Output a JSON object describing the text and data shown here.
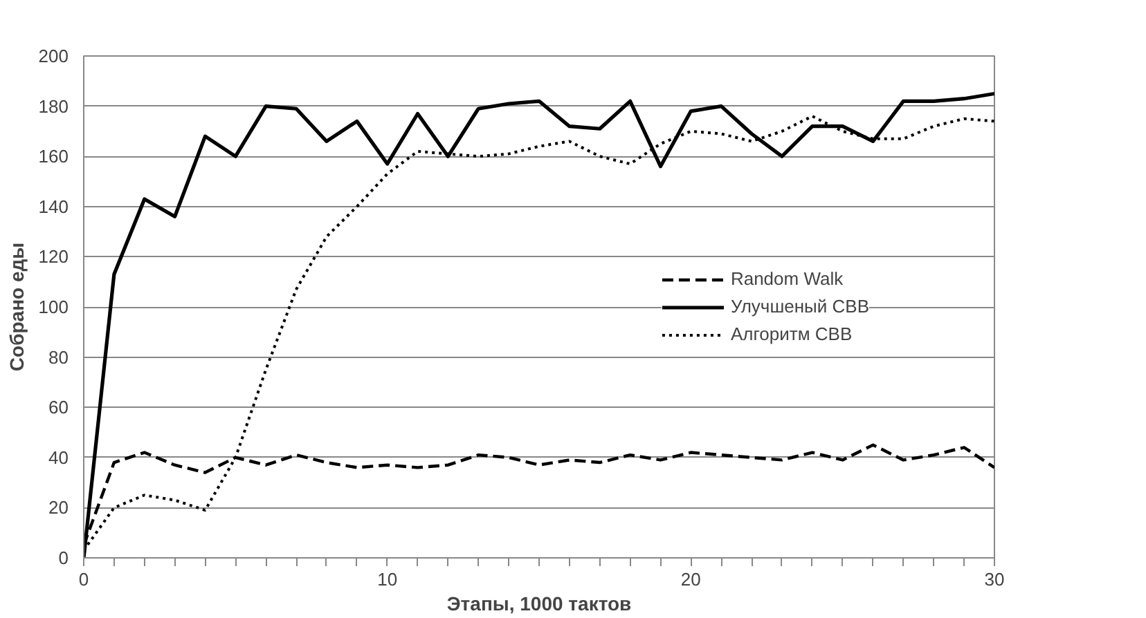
{
  "chart_data": {
    "type": "line",
    "xlabel": "Этапы, 1000 тактов",
    "ylabel": "Собрано еды",
    "x": [
      0,
      1,
      2,
      3,
      4,
      5,
      6,
      7,
      8,
      9,
      10,
      11,
      12,
      13,
      14,
      15,
      16,
      17,
      18,
      19,
      20,
      21,
      22,
      23,
      24,
      25,
      26,
      27,
      28,
      29,
      30
    ],
    "series": [
      {
        "name": "Random Walk",
        "color": "#000000",
        "line_style": "dashed",
        "values": [
          5,
          38,
          42,
          37,
          34,
          40,
          37,
          41,
          38,
          36,
          37,
          36,
          37,
          41,
          40,
          37,
          39,
          38,
          41,
          39,
          42,
          41,
          40,
          39,
          42,
          39,
          45,
          39,
          41,
          44,
          36
        ]
      },
      {
        "name": "Улучшеный СВВ",
        "color": "#000000",
        "line_style": "solid",
        "values": [
          0,
          113,
          143,
          136,
          168,
          160,
          180,
          179,
          166,
          174,
          157,
          177,
          160,
          179,
          181,
          182,
          172,
          171,
          182,
          156,
          178,
          180,
          169,
          160,
          172,
          172,
          166,
          182,
          182,
          183,
          185
        ]
      },
      {
        "name": "Алгоритм СВВ",
        "color": "#000000",
        "line_style": "dotted",
        "values": [
          3,
          20,
          25,
          23,
          19,
          40,
          75,
          107,
          128,
          140,
          153,
          162,
          161,
          160,
          161,
          164,
          166,
          160,
          157,
          165,
          170,
          169,
          166,
          170,
          176,
          170,
          167,
          167,
          172,
          175,
          174
        ]
      }
    ],
    "xlim": [
      0,
      30
    ],
    "ylim": [
      0,
      200
    ],
    "xticks": [
      0,
      {
        "value": 1,
        "label": null
      },
      {
        "value": 2,
        "label": null
      },
      {
        "value": 3,
        "label": null
      },
      {
        "value": 4,
        "label": null
      },
      {
        "value": 5,
        "label": null
      },
      {
        "value": 6,
        "label": null
      },
      {
        "value": 7,
        "label": null
      },
      {
        "value": 8,
        "label": null
      },
      {
        "value": 9,
        "label": null
      },
      10,
      {
        "value": 11,
        "label": null
      },
      {
        "value": 12,
        "label": null
      },
      {
        "value": 13,
        "label": null
      },
      {
        "value": 14,
        "label": null
      },
      {
        "value": 15,
        "label": null
      },
      {
        "value": 16,
        "label": null
      },
      {
        "value": 17,
        "label": null
      },
      {
        "value": 18,
        "label": null
      },
      {
        "value": 19,
        "label": null
      },
      20,
      {
        "value": 21,
        "label": null
      },
      {
        "value": 22,
        "label": null
      },
      {
        "value": 23,
        "label": null
      },
      {
        "value": 24,
        "label": null
      },
      {
        "value": 25,
        "label": null
      },
      {
        "value": 26,
        "label": null
      },
      {
        "value": 27,
        "label": null
      },
      {
        "value": 28,
        "label": null
      },
      {
        "value": 29,
        "label": null
      },
      30
    ],
    "yticks": [
      0,
      20,
      40,
      60,
      80,
      100,
      120,
      140,
      160,
      180,
      200
    ],
    "grid": "y",
    "legend": "right",
    "marker": "none"
  }
}
